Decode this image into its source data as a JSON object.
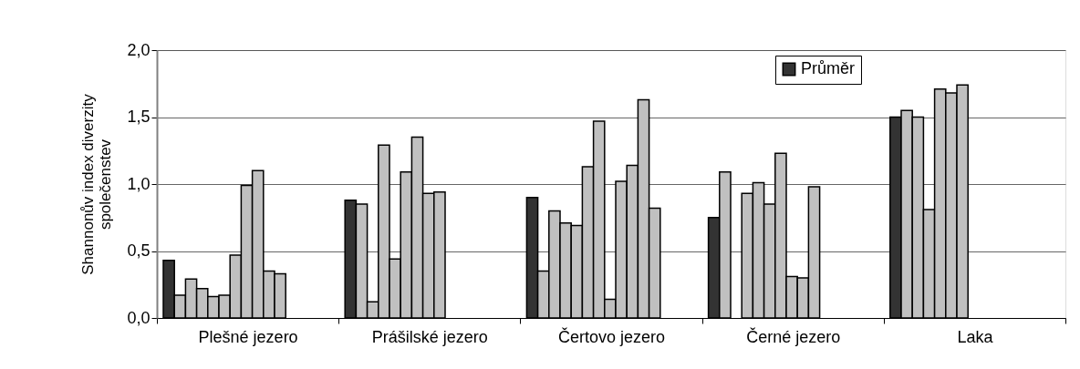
{
  "chart_data": {
    "type": "bar",
    "ylabel": "Shannonův index diverzity společenstev",
    "categories": [
      "Plešné jezero",
      "Prášilské jezero",
      "Čertovo jezero",
      "Černé jezero",
      "Laka"
    ],
    "series": [
      {
        "name": "Průměr",
        "color": "#333333",
        "values": [
          0.43,
          0.88,
          0.9,
          0.75,
          1.5
        ]
      },
      {
        "color": "#c0c0c0",
        "values": [
          0.17,
          0.85,
          0.35,
          1.09,
          1.55
        ]
      },
      {
        "color": "#c0c0c0",
        "values": [
          0.29,
          0.12,
          0.8,
          null,
          1.5
        ]
      },
      {
        "color": "#c0c0c0",
        "values": [
          0.22,
          1.29,
          0.71,
          0.93,
          0.81
        ]
      },
      {
        "color": "#c0c0c0",
        "values": [
          0.16,
          0.44,
          0.69,
          1.01,
          1.71
        ]
      },
      {
        "color": "#c0c0c0",
        "values": [
          0.17,
          1.09,
          1.13,
          0.85,
          1.68
        ]
      },
      {
        "color": "#c0c0c0",
        "values": [
          0.47,
          1.35,
          1.47,
          1.23,
          1.74
        ]
      },
      {
        "color": "#c0c0c0",
        "values": [
          0.99,
          0.93,
          0.14,
          0.31,
          null
        ]
      },
      {
        "color": "#c0c0c0",
        "values": [
          1.1,
          0.94,
          1.02,
          0.3,
          null
        ]
      },
      {
        "color": "#c0c0c0",
        "values": [
          0.35,
          null,
          1.14,
          0.98,
          null
        ]
      },
      {
        "color": "#c0c0c0",
        "values": [
          0.33,
          null,
          1.63,
          null,
          null
        ]
      },
      {
        "color": "#c0c0c0",
        "values": [
          null,
          null,
          0.82,
          null,
          null
        ]
      }
    ],
    "ylim": [
      0,
      2.0
    ],
    "yticks": [
      {
        "value": 0,
        "label": "0,0"
      },
      {
        "value": 0.5,
        "label": "0,5"
      },
      {
        "value": 1.0,
        "label": "1,0"
      },
      {
        "value": 1.5,
        "label": "1,5"
      },
      {
        "value": 2.0,
        "label": "2,0"
      }
    ],
    "grid": "y",
    "legend": "top right"
  }
}
